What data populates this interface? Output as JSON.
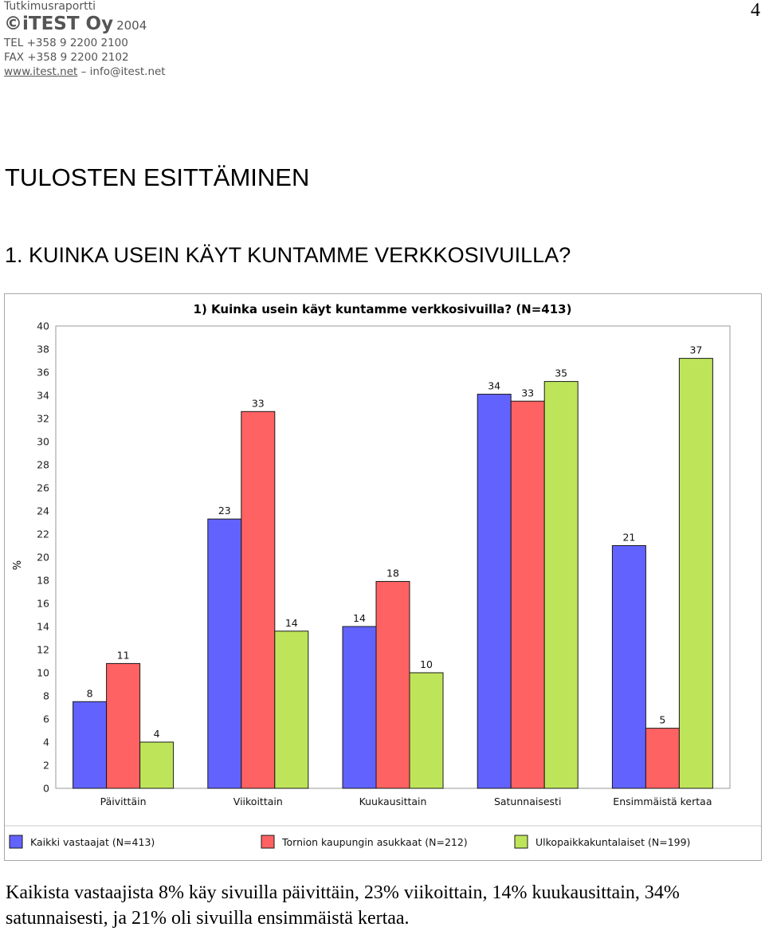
{
  "header": {
    "report_type": "Tutkimusraportti",
    "brand": "©iTEST Oy",
    "year": "2004",
    "tel": "TEL +358 9 2200 2100",
    "fax": "FAX +358 9 2200 2102",
    "web": "www.itest.net",
    "separator": "–",
    "email": "info@itest.net"
  },
  "page_number": "4",
  "section_title": "TULOSTEN ESITTÄMINEN",
  "question_title": "1. KUINKA USEIN KÄYT KUNTAMME VERKKOSIVUILLA?",
  "chart_data": {
    "type": "bar",
    "title": "1) Kuinka usein käyt kuntamme verkkosivuilla?  (N=413)",
    "xlabel": "",
    "ylabel": "%",
    "ylim": [
      0,
      40
    ],
    "yticks": [
      0,
      2,
      4,
      6,
      8,
      10,
      12,
      14,
      16,
      18,
      20,
      22,
      24,
      26,
      28,
      30,
      32,
      34,
      36,
      38,
      40
    ],
    "grid": false,
    "legend_position": "bottom",
    "categories": [
      "Päivittäin",
      "Viikoittain",
      "Kuukausittain",
      "Satunnaisesti",
      "Ensimmäistä kertaa"
    ],
    "series": [
      {
        "name": "Kaikki vastaajat (N=413)",
        "color": "#6262ff",
        "values": [
          7.5,
          23.3,
          14,
          34.1,
          21
        ],
        "labels": [
          "8",
          "23",
          "14",
          "34",
          "21"
        ]
      },
      {
        "name": "Tornion kaupungin asukkaat (N=212)",
        "color": "#ff6262",
        "values": [
          10.8,
          32.6,
          17.9,
          33.5,
          5.2
        ],
        "labels": [
          "11",
          "33",
          "18",
          "33",
          "5"
        ]
      },
      {
        "name": "Ulkopaikkakuntalaiset (N=199)",
        "color": "#bee55a",
        "values": [
          4,
          13.6,
          10,
          35.2,
          37.2
        ],
        "labels": [
          "4",
          "14",
          "10",
          "35",
          "37"
        ]
      }
    ]
  },
  "caption": "Kaikista vastaajista 8% käy sivuilla päivittäin, 23% viikoittain, 14% kuukausittain, 34% satunnaisesti, ja 21% oli sivuilla ensimmäistä kertaa."
}
